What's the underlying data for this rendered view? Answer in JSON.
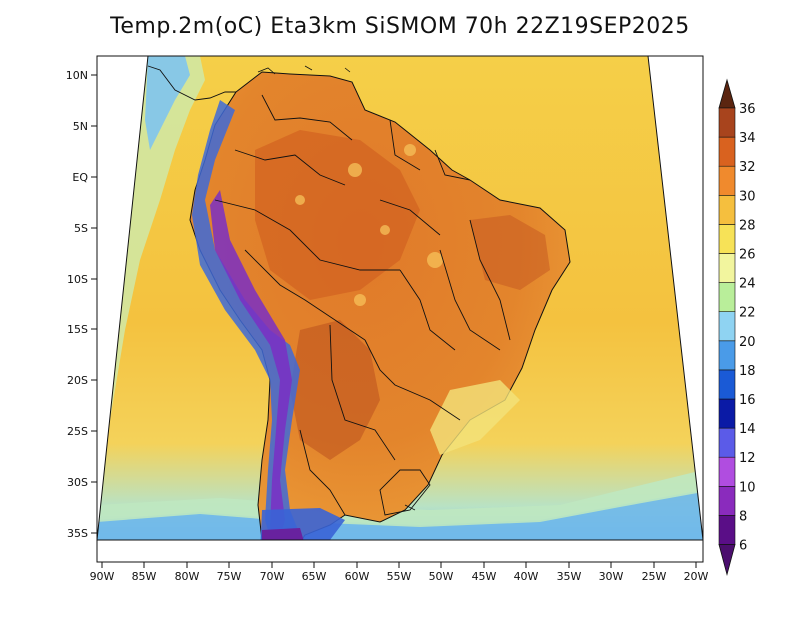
{
  "title": "Temp.2m(oC)  Eta3km  SiSMOM  70h  22Z19SEP2025",
  "map": {
    "lat_ticks": [
      "10N",
      "5N",
      "EQ",
      "5S",
      "10S",
      "15S",
      "20S",
      "25S",
      "30S",
      "35S"
    ],
    "lon_ticks": [
      "90W",
      "85W",
      "80W",
      "75W",
      "70W",
      "65W",
      "60W",
      "55W",
      "50W",
      "45W",
      "40W",
      "35W",
      "30W",
      "25W",
      "20W"
    ]
  },
  "colorbar": {
    "labels": [
      "6",
      "8",
      "10",
      "12",
      "14",
      "16",
      "18",
      "20",
      "22",
      "24",
      "26",
      "28",
      "30",
      "32",
      "34",
      "36"
    ],
    "colors": [
      "#5a0e87",
      "#8a2bbd",
      "#b04de0",
      "#5b5be8",
      "#0a1aa6",
      "#1a5ad6",
      "#4a9be8",
      "#8fd3f2",
      "#b9ee9a",
      "#f2f59e",
      "#f7e257",
      "#f5bf3e",
      "#f08a2d",
      "#d9621f",
      "#a8441d",
      "#6e2a12"
    ],
    "under_color": "#4b0e6e",
    "over_color": "#5b2510"
  }
}
